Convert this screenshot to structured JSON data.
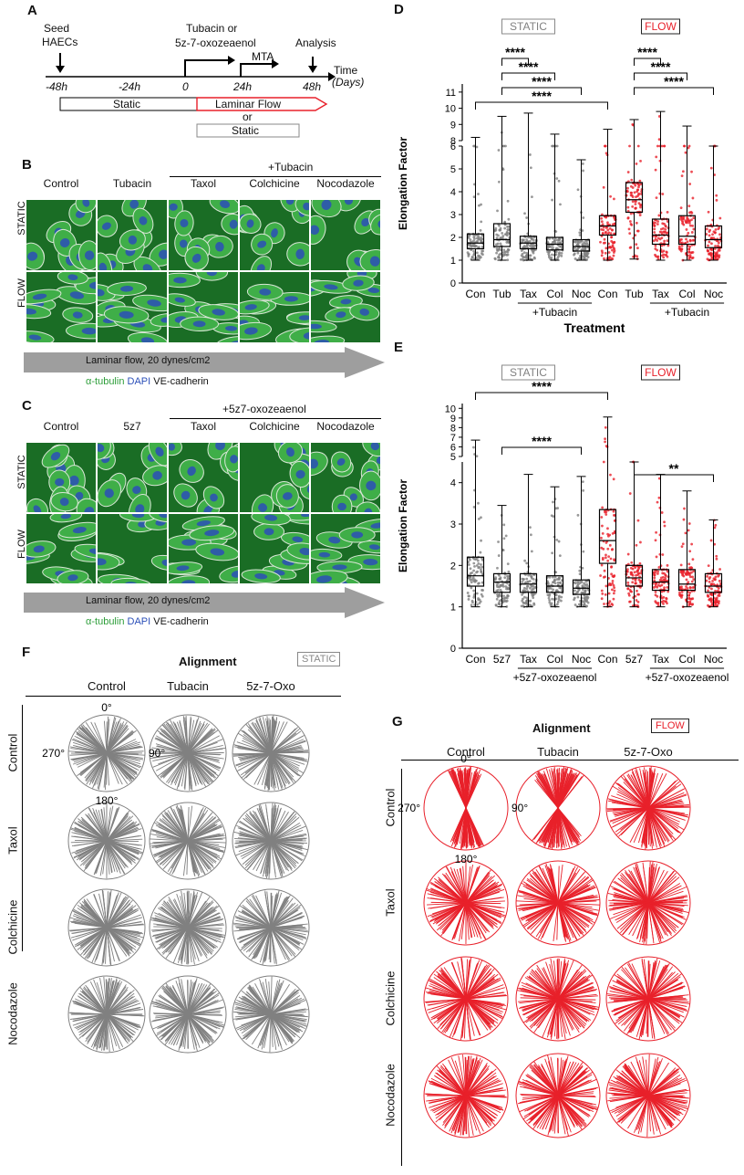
{
  "panels": {
    "A": {
      "label": "A",
      "seed": [
        "Seed",
        "HAECs"
      ],
      "treat": [
        "Tubacin or",
        "5z-7-oxozeaenol"
      ],
      "mta": "MTA",
      "analysis": "Analysis",
      "time": "Time",
      "days": "(Days)",
      "ticks": [
        "-48h",
        "-24h",
        "0",
        "24h",
        "48h"
      ],
      "static_bar": "Static",
      "flow_bar": "Laminar Flow",
      "or": "or",
      "static_bar2": "Static"
    },
    "B": {
      "label": "B",
      "group": "+Tubacin",
      "columns": [
        "Control",
        "Tubacin",
        "Taxol",
        "Colchicine",
        "Nocodazole"
      ],
      "rows": [
        "STATIC",
        "FLOW"
      ],
      "flow_arrow": "Laminar flow, 20 dynes/cm2",
      "stain": [
        "α-tubulin",
        "DAPI",
        "VE-cadherin"
      ]
    },
    "C": {
      "label": "C",
      "group": "+5z7-oxozeaenol",
      "columns": [
        "Control",
        "5z7",
        "Taxol",
        "Colchicine",
        "Nocodazole"
      ],
      "rows": [
        "STATIC",
        "FLOW"
      ],
      "flow_arrow": "Laminar flow, 20 dynes/cm2",
      "stain": [
        "α-tubulin",
        "DAPI",
        "VE-cadherin"
      ]
    },
    "F": {
      "label": "F",
      "title": "Alignment",
      "tag": "STATIC",
      "columns": [
        "Control",
        "Tubacin",
        "5z-7-Oxo"
      ],
      "rows": [
        "Control",
        "Taxol",
        "Colchicine",
        "Nocodazole"
      ],
      "angles": [
        "0°",
        "90°",
        "180°",
        "270°"
      ]
    },
    "G": {
      "label": "G",
      "title": "Alignment",
      "tag": "FLOW",
      "columns": [
        "Control",
        "Tubacin",
        "5z-7-Oxo"
      ],
      "rows": [
        "Control",
        "Taxol",
        "Colchicine",
        "Nocodazole"
      ],
      "angles": [
        "0°",
        "90°",
        "180°",
        "270°"
      ]
    }
  },
  "colors": {
    "static": "#808080",
    "flow": "#e8202a",
    "tubulin": "#2e9e3a",
    "dapi": "#2b4fb8"
  },
  "chart_data": [
    {
      "id": "D",
      "label": "D",
      "type": "box",
      "ylabel": "Elongation Factor",
      "xlabel": "Treatment",
      "group_tags": [
        "STATIC",
        "FLOW"
      ],
      "categories": [
        "Con",
        "Tub",
        "Tax",
        "Col",
        "Noc",
        "Con",
        "Tub",
        "Tax",
        "Col",
        "Noc"
      ],
      "subgroups": [
        "+Tubacin",
        "+Tubacin"
      ],
      "axis_break": [
        6,
        8
      ],
      "yticks": [
        0,
        1,
        2,
        3,
        4,
        5,
        6,
        8,
        9,
        10,
        11
      ],
      "series": [
        {
          "name": "STATIC",
          "boxes": [
            {
              "min": 1.0,
              "q1": 1.5,
              "median": 1.75,
              "q3": 2.15,
              "max": 8.2
            },
            {
              "min": 1.0,
              "q1": 1.6,
              "median": 1.9,
              "q3": 2.6,
              "max": 9.5
            },
            {
              "min": 1.0,
              "q1": 1.5,
              "median": 1.75,
              "q3": 2.05,
              "max": 9.7
            },
            {
              "min": 1.0,
              "q1": 1.45,
              "median": 1.7,
              "q3": 2.0,
              "max": 8.4
            },
            {
              "min": 1.0,
              "q1": 1.4,
              "median": 1.6,
              "q3": 1.9,
              "max": 5.4
            }
          ]
        },
        {
          "name": "FLOW",
          "boxes": [
            {
              "min": 1.0,
              "q1": 2.1,
              "median": 2.5,
              "q3": 2.95,
              "max": 8.7
            },
            {
              "min": 1.05,
              "q1": 3.1,
              "median": 3.65,
              "q3": 4.4,
              "max": 9.3
            },
            {
              "min": 1.0,
              "q1": 1.7,
              "median": 2.1,
              "q3": 2.8,
              "max": 9.8
            },
            {
              "min": 1.0,
              "q1": 1.7,
              "median": 2.05,
              "q3": 2.95,
              "max": 8.9
            },
            {
              "min": 1.0,
              "q1": 1.55,
              "median": 1.9,
              "q3": 2.5,
              "max": 6.6
            }
          ]
        }
      ],
      "significance": [
        {
          "from": 1,
          "to": 2,
          "label": "****"
        },
        {
          "from": 1,
          "to": 3,
          "label": "****"
        },
        {
          "from": 1,
          "to": 4,
          "label": "****"
        },
        {
          "from": 0,
          "to": 5,
          "label": "****"
        },
        {
          "from": 6,
          "to": 7,
          "label": "****"
        },
        {
          "from": 6,
          "to": 8,
          "label": "****"
        },
        {
          "from": 6,
          "to": 9,
          "label": "****"
        }
      ]
    },
    {
      "id": "E",
      "label": "E",
      "type": "box",
      "ylabel": "Elongation Factor",
      "xlabel": "Treatment",
      "group_tags": [
        "STATIC",
        "FLOW"
      ],
      "categories": [
        "Con",
        "5z7",
        "Tax",
        "Col",
        "Noc",
        "Con",
        "5z7",
        "Tax",
        "Col",
        "Noc"
      ],
      "subgroups": [
        "+5z7-oxozeaenol",
        "+5z7-oxozeaenol"
      ],
      "axis_break": [
        4.5,
        5
      ],
      "yticks": [
        0,
        1,
        2,
        3,
        4,
        5,
        6,
        7,
        8,
        9,
        10
      ],
      "series": [
        {
          "name": "STATIC",
          "boxes": [
            {
              "min": 1.0,
              "q1": 1.5,
              "median": 1.75,
              "q3": 2.2,
              "max": 6.7
            },
            {
              "min": 1.0,
              "q1": 1.35,
              "median": 1.6,
              "q3": 1.8,
              "max": 3.45
            },
            {
              "min": 1.0,
              "q1": 1.35,
              "median": 1.55,
              "q3": 1.8,
              "max": 4.2
            },
            {
              "min": 1.0,
              "q1": 1.35,
              "median": 1.5,
              "q3": 1.75,
              "max": 3.9
            },
            {
              "min": 1.0,
              "q1": 1.3,
              "median": 1.45,
              "q3": 1.65,
              "max": 4.15
            }
          ]
        },
        {
          "name": "FLOW",
          "boxes": [
            {
              "min": 1.0,
              "q1": 2.05,
              "median": 2.6,
              "q3": 3.35,
              "max": 9.1
            },
            {
              "min": 1.0,
              "q1": 1.5,
              "median": 1.7,
              "q3": 2.0,
              "max": 4.9
            },
            {
              "min": 1.0,
              "q1": 1.4,
              "median": 1.6,
              "q3": 1.9,
              "max": 4.2
            },
            {
              "min": 1.0,
              "q1": 1.4,
              "median": 1.55,
              "q3": 1.9,
              "max": 3.8
            },
            {
              "min": 1.0,
              "q1": 1.35,
              "median": 1.5,
              "q3": 1.8,
              "max": 3.1
            }
          ]
        }
      ],
      "significance": [
        {
          "from": 0,
          "to": 5,
          "label": "****"
        },
        {
          "from": 1,
          "to": 4,
          "label": "****"
        },
        {
          "from": 6,
          "to": 9,
          "label": "**"
        }
      ]
    }
  ]
}
